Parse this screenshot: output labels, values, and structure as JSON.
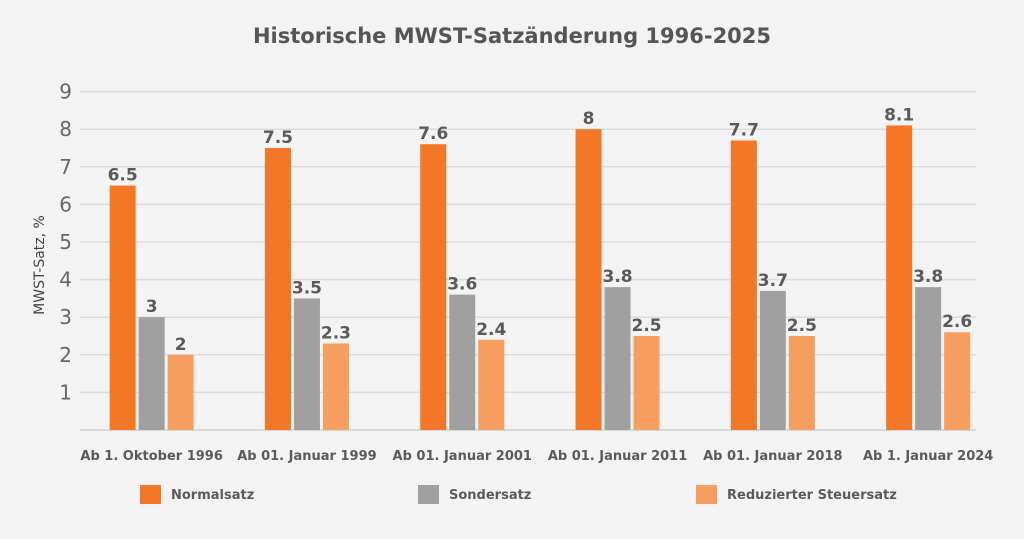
{
  "chart_data": {
    "type": "bar",
    "title": "Historische MWST-Satzänderung 1996-2025",
    "xlabel": "",
    "ylabel": "MWST-Satz, %",
    "ylim": [
      0,
      9
    ],
    "yticks": [
      1,
      2,
      3,
      4,
      5,
      6,
      7,
      8,
      9
    ],
    "grid": true,
    "legend_position": "bottom",
    "categories": [
      "Ab 1. Oktober 1996",
      "Ab 01. Januar 1999",
      "Ab 01. Januar 2001",
      "Ab 01. Januar 2011",
      "Ab 01. Januar 2018",
      "Ab 1. Januar 2024"
    ],
    "series": [
      {
        "name": "Normalsatz",
        "color": "#f37726",
        "values": [
          6.5,
          7.5,
          7.6,
          8,
          7.7,
          8.1
        ]
      },
      {
        "name": "Sondersatz",
        "color": "#a0a0a0",
        "values": [
          3,
          3.5,
          3.6,
          3.8,
          3.7,
          3.8
        ]
      },
      {
        "name": "Reduzierter Steuersatz",
        "color": "#f59e5f",
        "values": [
          2,
          2.3,
          2.4,
          2.5,
          2.5,
          2.6
        ]
      }
    ]
  }
}
